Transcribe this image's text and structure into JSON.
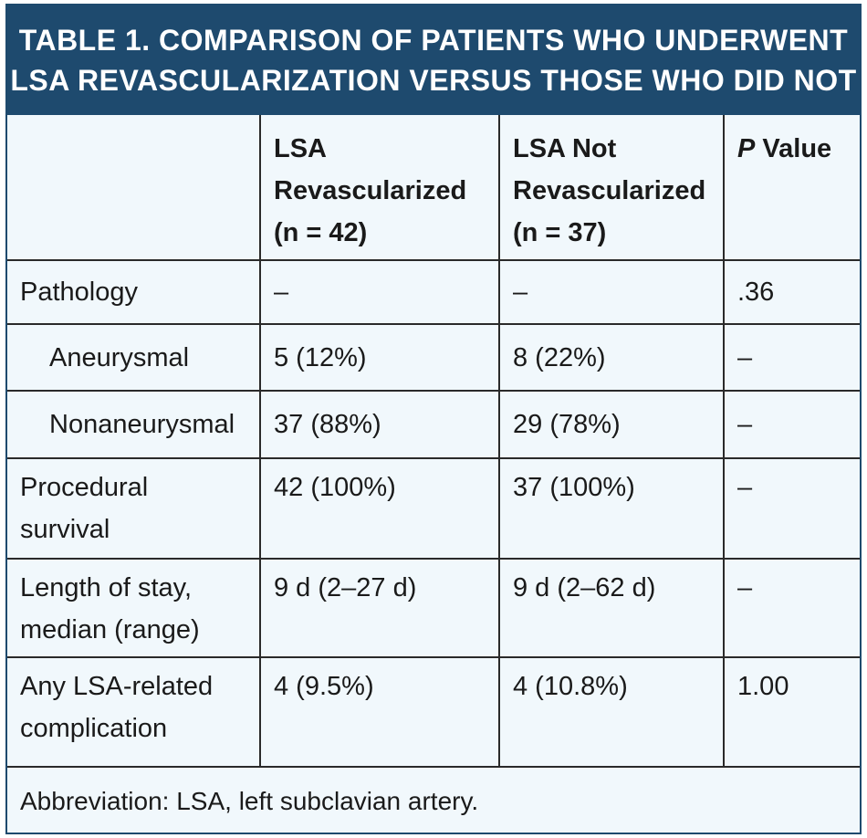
{
  "table": {
    "title_line1": "TABLE 1.  COMPARISON OF PATIENTS WHO UNDERWENT",
    "title_line2": "LSA REVASCULARIZATION VERSUS THOSE WHO DID NOT",
    "headers": {
      "col1": "",
      "col2_line1": "LSA",
      "col2_line2": "Revascularized",
      "col2_line3": "(n = 42)",
      "col3_line1": "LSA Not",
      "col3_line2": "Revascularized",
      "col3_line3": "(n = 37)",
      "col4_italic": "P",
      "col4_rest": " Value"
    },
    "rows": [
      {
        "label": "Pathology",
        "revasc": "–",
        "not_revasc": "–",
        "p": ".36"
      },
      {
        "label": "Aneurysmal",
        "revasc": "5 (12%)",
        "not_revasc": "8 (22%)",
        "p": "–"
      },
      {
        "label": "Nonaneurysmal",
        "revasc": "37 (88%)",
        "not_revasc": "29 (78%)",
        "p": "–"
      },
      {
        "label_line1": "Procedural",
        "label_line2": "survival",
        "revasc": "42 (100%)",
        "not_revasc": "37 (100%)",
        "p": "–"
      },
      {
        "label_line1": "Length of stay,",
        "label_line2": "median (range)",
        "revasc": "9 d (2–27 d)",
        "not_revasc": "9 d (2–62 d)",
        "p": "–"
      },
      {
        "label_line1": "Any LSA-related",
        "label_line2": "complication",
        "revasc": "4 (9.5%)",
        "not_revasc": "4 (10.8%)",
        "p": "1.00"
      }
    ],
    "footnote": "Abbreviation: LSA, left subclavian artery."
  },
  "colors": {
    "header_bg": "#1e4a6e",
    "body_bg": "#f1f8fc",
    "grid": "#2a2a2a"
  }
}
